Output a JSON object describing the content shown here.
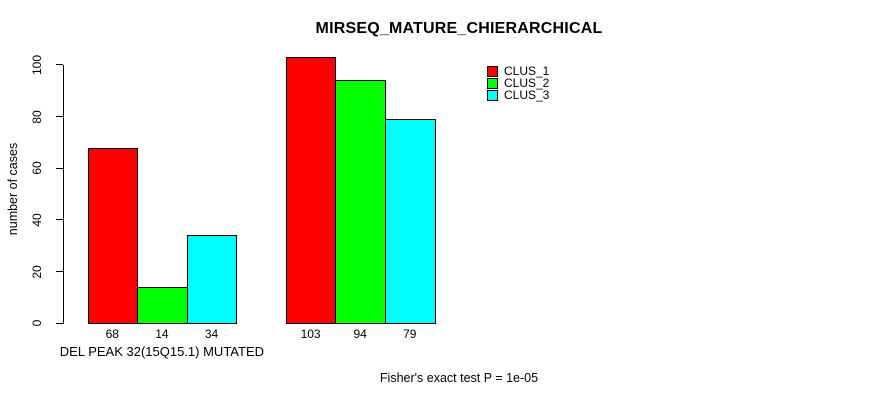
{
  "chart_data": {
    "type": "bar",
    "title": "MIRSEQ_MATURE_CHIERARCHICAL",
    "ylabel": "number of cases",
    "xlabel": "",
    "ylim": [
      0,
      100
    ],
    "yticks": [
      0,
      20,
      40,
      60,
      80,
      100
    ],
    "grid": false,
    "legend_position": "top-right",
    "background_color": "#ffffff",
    "bar_border_color": "#000000",
    "text_color": "#000000",
    "series": [
      {
        "name": "CLUS_1",
        "color": "#ff0000"
      },
      {
        "name": "CLUS_2",
        "color": "#00ff00"
      },
      {
        "name": "CLUS_3",
        "color": "#00ffff"
      }
    ],
    "groups": [
      {
        "label": "DEL PEAK 32(15Q15.1) MUTATED",
        "values": [
          68,
          14,
          34
        ]
      },
      {
        "label": "",
        "values": [
          103,
          94,
          79
        ]
      }
    ],
    "annotation": "Fisher's exact test P = 1e-05"
  }
}
